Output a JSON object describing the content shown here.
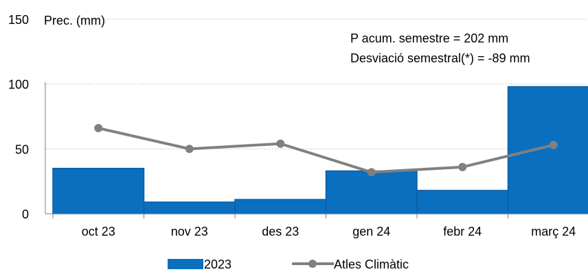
{
  "chart_data": {
    "type": "bar",
    "ylabel": "Prec. (mm)",
    "ylim": [
      0,
      150
    ],
    "yticks": [
      0,
      50,
      100,
      150
    ],
    "grid": true,
    "categories": [
      "oct 23",
      "nov 23",
      "des 23",
      "gen 24",
      "febr 24",
      "març 24"
    ],
    "series": [
      {
        "name": "2023",
        "type": "bar",
        "color": "#0A6FBF",
        "values": [
          35,
          9,
          11,
          33,
          18,
          98
        ]
      },
      {
        "name": "Atles Climàtic",
        "type": "line",
        "color": "#808080",
        "values": [
          66,
          50,
          54,
          32,
          36,
          53
        ]
      }
    ],
    "annotations": [
      "P acum. semestre = 202 mm",
      "Desviació semestral(*) = -89 mm"
    ],
    "legend": "bottom"
  }
}
